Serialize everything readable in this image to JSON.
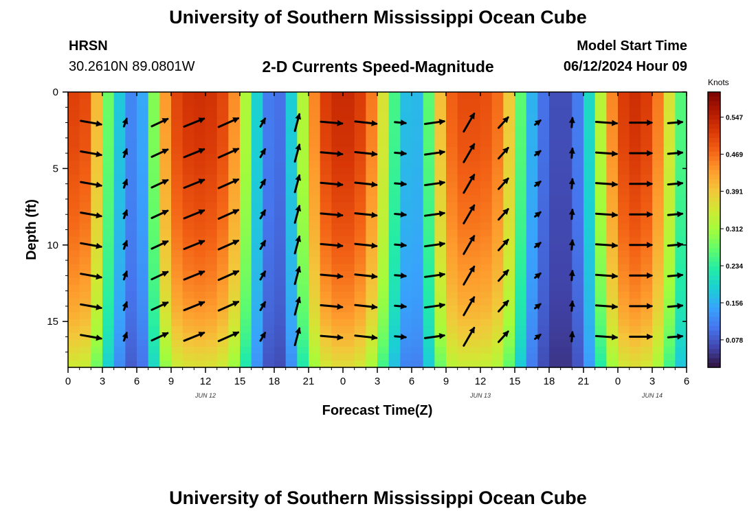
{
  "page": {
    "title_top": "University of Southern Mississippi Ocean Cube",
    "title_bottom": "University of Southern Mississippi Ocean Cube",
    "station": "HRSN",
    "coords": "30.2610N  89.0801W",
    "subtitle": "2-D Currents Speed-Magnitude",
    "model_label": "Model Start Time",
    "model_time": "06/12/2024 Hour 09"
  },
  "chart_data": {
    "type": "heatmap",
    "title": "2-D Currents Speed-Magnitude",
    "xlabel": "Forecast Time(Z)",
    "ylabel": "Depth (ft)",
    "x_range_hours": [
      0,
      54
    ],
    "y_range_ft": [
      0,
      18
    ],
    "x_tick_labels": [
      "0",
      "3",
      "6",
      "9",
      "12",
      "15",
      "18",
      "21",
      "0",
      "3",
      "6",
      "9",
      "12",
      "15",
      "18",
      "21",
      "0",
      "3",
      "6"
    ],
    "y_tick_labels": [
      "0",
      "5",
      "10",
      "15"
    ],
    "y_tick_values": [
      0,
      5,
      10,
      15
    ],
    "date_labels": [
      {
        "text": "JUN 12",
        "hour": 12
      },
      {
        "text": "JUN 13",
        "hour": 36
      },
      {
        "text": "JUN 14",
        "hour": 51
      }
    ],
    "colorbar": {
      "unit": "Knots",
      "ticks": [
        "0.547",
        "0.469",
        "0.391",
        "0.312",
        "0.234",
        "0.156",
        "0.078"
      ],
      "tick_values": [
        0.547,
        0.469,
        0.391,
        0.312,
        0.234,
        0.156,
        0.078
      ],
      "range": [
        0.02,
        0.6
      ],
      "colors": [
        "#30123b",
        "#4145ab",
        "#4675ed",
        "#39a2fc",
        "#1bcfd4",
        "#24eca6",
        "#61fc6c",
        "#a4fc3b",
        "#d1e834",
        "#f3c63a",
        "#fe9b2d",
        "#f36315",
        "#d93806",
        "#b11901",
        "#7a0402"
      ]
    },
    "speed_profile_hours": [
      0,
      1,
      2,
      3,
      4,
      5,
      6,
      7,
      8,
      9,
      10,
      11,
      12,
      13,
      14,
      15,
      16,
      17,
      18,
      19,
      20,
      21,
      22,
      23,
      24,
      25,
      26,
      27,
      28,
      29,
      30,
      31,
      32,
      33,
      34,
      35,
      36,
      37,
      38,
      39,
      40,
      41,
      42,
      43,
      44,
      45,
      46,
      47,
      48,
      49,
      50,
      51,
      52,
      53,
      54
    ],
    "speed_surface_knots": [
      0.5,
      0.52,
      0.48,
      0.33,
      0.22,
      0.14,
      0.1,
      0.2,
      0.38,
      0.49,
      0.52,
      0.53,
      0.53,
      0.52,
      0.49,
      0.4,
      0.24,
      0.14,
      0.08,
      0.12,
      0.25,
      0.4,
      0.5,
      0.53,
      0.54,
      0.53,
      0.5,
      0.42,
      0.3,
      0.2,
      0.14,
      0.19,
      0.34,
      0.46,
      0.5,
      0.5,
      0.5,
      0.49,
      0.45,
      0.33,
      0.2,
      0.12,
      0.08,
      0.06,
      0.08,
      0.14,
      0.26,
      0.4,
      0.5,
      0.53,
      0.53,
      0.5,
      0.42,
      0.3,
      0.22
    ],
    "speed_depth_factor": [
      1.0,
      0.99,
      0.98,
      0.96,
      0.94,
      0.92,
      0.89,
      0.86,
      0.82,
      0.76,
      0.68
    ],
    "vector_hours": [
      2,
      5,
      8,
      11,
      14,
      17,
      20,
      23,
      26,
      29,
      32,
      35,
      38,
      41,
      44,
      47,
      50,
      53
    ],
    "vector_depths_ft": [
      2,
      4,
      6,
      8,
      10,
      12,
      14,
      16
    ],
    "vector_direction_deg": [
      10,
      -70,
      -25,
      -22,
      -24,
      -60,
      -75,
      5,
      6,
      5,
      -8,
      -60,
      -48,
      -38,
      -85,
      4,
      0,
      -5
    ],
    "vector_speed_knots": [
      0.5,
      0.12,
      0.4,
      0.52,
      0.52,
      0.15,
      0.4,
      0.52,
      0.52,
      0.2,
      0.46,
      0.5,
      0.3,
      0.08,
      0.15,
      0.5,
      0.53,
      0.3
    ]
  }
}
